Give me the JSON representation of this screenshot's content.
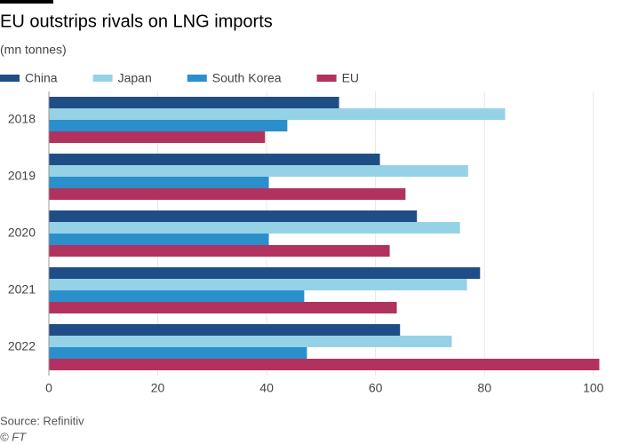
{
  "chart_data": {
    "type": "hbar",
    "title": "EU outstrips rivals on LNG imports",
    "subtitle": "(mn tonnes)",
    "categories": [
      "2018",
      "2019",
      "2020",
      "2021",
      "2022"
    ],
    "series": [
      {
        "name": "China",
        "color": "#1f4e87",
        "values": [
          53.3,
          60.8,
          67.6,
          79.2,
          64.5
        ]
      },
      {
        "name": "Japan",
        "color": "#96d2e6",
        "values": [
          83.8,
          77.0,
          75.5,
          76.8,
          74.0
        ]
      },
      {
        "name": "South Korea",
        "color": "#2b8fcb",
        "values": [
          43.8,
          40.4,
          40.4,
          46.9,
          47.4
        ]
      },
      {
        "name": "EU",
        "color": "#b2325f",
        "values": [
          39.7,
          65.5,
          62.6,
          63.9,
          101.1
        ]
      }
    ],
    "xlim": [
      0,
      102
    ],
    "xticks": [
      0,
      20,
      40,
      60,
      80,
      100
    ],
    "grid": true,
    "source": "Source: Refinitiv",
    "credit": "© FT"
  }
}
